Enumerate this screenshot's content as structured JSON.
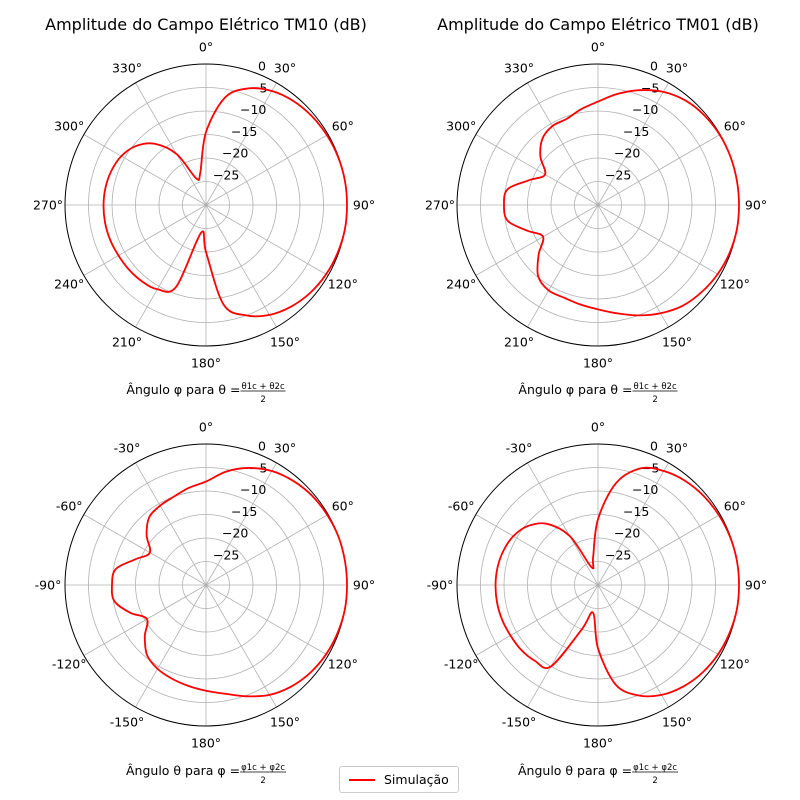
{
  "legend": {
    "label": "Simulação",
    "color": "#ff0000"
  },
  "chart_data": [
    {
      "type": "polar-line",
      "title": "Amplitude do Campo Elétrico TM10 (dB)",
      "xlabel_prefix": "Ângulo φ para θ = ",
      "xlabel_frac": {
        "num": "θ1c + θ2c",
        "den": "2"
      },
      "angle_tick_labels": [
        "0°",
        "30°",
        "60°",
        "90°",
        "120°",
        "150°",
        "180°",
        "210°",
        "240°",
        "270°",
        "300°",
        "330°"
      ],
      "radial_ticks": [
        0,
        -5,
        -10,
        -15,
        -20,
        -25
      ],
      "rlim": [
        -30,
        0
      ],
      "theta_zero": "top",
      "theta_direction": "clockwise",
      "grid": true,
      "series": [
        {
          "name": "Simulação",
          "color": "#ff0000",
          "angle_deg": [
            0,
            10,
            20,
            30,
            40,
            50,
            60,
            70,
            80,
            90,
            100,
            110,
            120,
            130,
            140,
            150,
            160,
            170,
            180,
            190,
            200,
            210,
            220,
            230,
            240,
            250,
            260,
            270,
            280,
            290,
            300,
            310,
            320,
            330,
            340,
            350
          ],
          "values_db": [
            -14.5,
            -6.8,
            -3.6,
            -2.0,
            -1.1,
            -0.6,
            -0.3,
            -0.1,
            0,
            0,
            0,
            -0.2,
            -0.5,
            -1.0,
            -1.8,
            -3.0,
            -5.0,
            -8.5,
            -20,
            -24,
            -11.5,
            -9.3,
            -8.8,
            -8.6,
            -8.5,
            -8.3,
            -8.2,
            -8.2,
            -8.3,
            -8.6,
            -9.2,
            -10.5,
            -13.0,
            -17.5,
            -24,
            -23
          ]
        }
      ]
    },
    {
      "type": "polar-line",
      "title": "Amplitude do Campo Elétrico TM01 (dB)",
      "xlabel_prefix": "Ângulo φ para θ = ",
      "xlabel_frac": {
        "num": "θ1c + θ2c",
        "den": "2"
      },
      "angle_tick_labels": [
        "0°",
        "30°",
        "60°",
        "90°",
        "120°",
        "150°",
        "180°",
        "210°",
        "240°",
        "270°",
        "300°",
        "330°"
      ],
      "radial_ticks": [
        0,
        -5,
        -10,
        -15,
        -20,
        -25
      ],
      "rlim": [
        -30,
        0
      ],
      "theta_zero": "top",
      "theta_direction": "clockwise",
      "grid": true,
      "series": [
        {
          "name": "Simulação",
          "color": "#ff0000",
          "angle_deg": [
            0,
            10,
            20,
            30,
            40,
            50,
            60,
            70,
            80,
            90,
            100,
            110,
            120,
            130,
            140,
            150,
            160,
            170,
            180,
            190,
            200,
            210,
            220,
            230,
            240,
            250,
            260,
            270,
            280,
            290,
            300,
            310,
            320,
            330,
            340,
            350
          ],
          "values_db": [
            -8.0,
            -6.0,
            -4.0,
            -2.2,
            -1.0,
            -0.4,
            -0.1,
            0,
            0,
            0,
            0,
            -0.2,
            -0.6,
            -1.2,
            -2.0,
            -3.4,
            -5.0,
            -6.6,
            -7.8,
            -8.5,
            -9.0,
            -9.0,
            -10.2,
            -13.5,
            -16.5,
            -14.0,
            -10.5,
            -10.0,
            -10.5,
            -14.5,
            -17.0,
            -14.0,
            -11.6,
            -10.6,
            -10.5,
            -9.3
          ]
        }
      ]
    },
    {
      "type": "polar-line",
      "title": "",
      "xlabel_prefix": "Ângulo θ para φ = ",
      "xlabel_frac": {
        "num": "φ1c + φ2c",
        "den": "2"
      },
      "angle_tick_labels": [
        "0°",
        "30°",
        "60°",
        "90°",
        "120°",
        "150°",
        "180°",
        "-150°",
        "-120°",
        "-90°",
        "-60°",
        "-30°"
      ],
      "radial_ticks": [
        0,
        -5,
        -10,
        -15,
        -20,
        -25
      ],
      "rlim": [
        -30,
        0
      ],
      "theta_zero": "top",
      "theta_direction": "clockwise",
      "grid": true,
      "series": [
        {
          "name": "Simulação",
          "color": "#ff0000",
          "angle_deg": [
            0,
            10,
            20,
            30,
            40,
            50,
            60,
            70,
            80,
            90,
            100,
            110,
            120,
            130,
            140,
            150,
            160,
            170,
            180,
            190,
            200,
            210,
            220,
            230,
            240,
            250,
            260,
            270,
            280,
            290,
            300,
            310,
            320,
            330,
            340,
            350
          ],
          "values_db": [
            -8.0,
            -5.5,
            -3.5,
            -2.0,
            -1.1,
            -0.5,
            -0.2,
            0,
            0,
            0,
            0,
            -0.2,
            -0.5,
            -1.0,
            -1.8,
            -3.0,
            -4.8,
            -6.5,
            -7.5,
            -8.2,
            -8.8,
            -9.4,
            -10.5,
            -13.0,
            -15.5,
            -12.8,
            -10.2,
            -10.0,
            -10.5,
            -14.0,
            -16.2,
            -13.5,
            -11.2,
            -10.5,
            -10.0,
            -9.0
          ]
        }
      ]
    },
    {
      "type": "polar-line",
      "title": "",
      "xlabel_prefix": "Ângulo θ para φ = ",
      "xlabel_frac": {
        "num": "φ1c + φ2c",
        "den": "2"
      },
      "angle_tick_labels": [
        "0°",
        "30°",
        "60°",
        "90°",
        "120°",
        "150°",
        "180°",
        "-150°",
        "-120°",
        "-90°",
        "-60°",
        "-30°"
      ],
      "radial_ticks": [
        0,
        -5,
        -10,
        -15,
        -20,
        -25
      ],
      "rlim": [
        -30,
        0
      ],
      "theta_zero": "top",
      "theta_direction": "clockwise",
      "grid": true,
      "series": [
        {
          "name": "Simulação",
          "color": "#ff0000",
          "angle_deg": [
            0,
            10,
            20,
            30,
            40,
            50,
            60,
            70,
            80,
            90,
            100,
            110,
            120,
            130,
            140,
            150,
            160,
            170,
            180,
            190,
            200,
            210,
            220,
            230,
            240,
            250,
            260,
            270,
            280,
            290,
            300,
            310,
            320,
            330,
            340,
            350
          ],
          "values_db": [
            -16.0,
            -8.0,
            -3.6,
            -2.0,
            -1.1,
            -0.6,
            -0.3,
            -0.1,
            0,
            0,
            0,
            -0.2,
            -0.5,
            -1.0,
            -1.8,
            -3.0,
            -5.0,
            -8.5,
            -16.5,
            -24,
            -20,
            -10.0,
            -9.0,
            -8.6,
            -8.5,
            -8.3,
            -8.2,
            -8.2,
            -8.3,
            -8.6,
            -9.2,
            -10.5,
            -13.0,
            -18.0,
            -26,
            -24
          ]
        }
      ]
    }
  ]
}
